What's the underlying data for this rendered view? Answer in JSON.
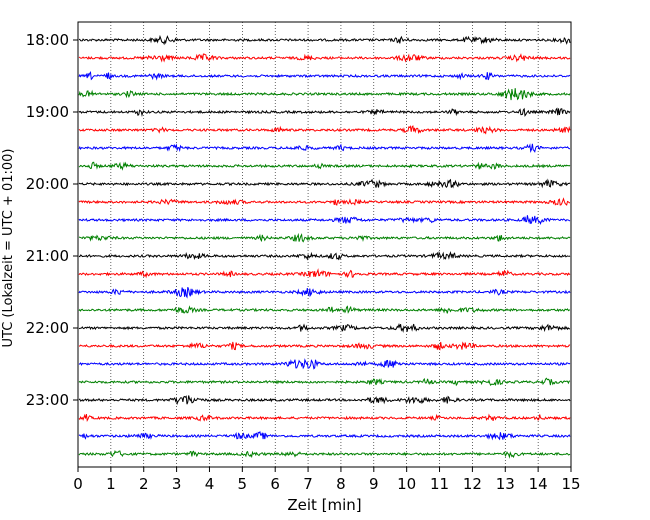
{
  "chart_data": {
    "type": "line",
    "title": "",
    "xlabel": "Zeit  [min]",
    "ylabel": "UTC (Lokalzeit = UTC + 01:00)",
    "xlim": [
      0,
      15
    ],
    "xticks": [
      0,
      1,
      2,
      3,
      4,
      5,
      6,
      7,
      8,
      9,
      10,
      11,
      12,
      13,
      14,
      15
    ],
    "xtick_labels": [
      "0",
      "1",
      "2",
      "3",
      "4",
      "5",
      "6",
      "7",
      "8",
      "9",
      "10",
      "11",
      "12",
      "13",
      "14",
      "15"
    ],
    "ylim_hours": [
      18.0,
      23.75
    ],
    "ytick_labels": [
      {
        "label": "18:00",
        "hour": 18.0
      },
      {
        "label": "19:00",
        "hour": 19.0
      },
      {
        "label": "20:00",
        "hour": 20.0
      },
      {
        "label": "21:00",
        "hour": 21.0
      },
      {
        "label": "22:00",
        "hour": 22.0
      },
      {
        "label": "23:00",
        "hour": 23.0
      }
    ],
    "vertical_grid": "dotted",
    "trace_colors": [
      "#000000",
      "#ff0000",
      "#0000ff",
      "#008000"
    ],
    "series": [
      {
        "start": "18:00",
        "color": "#000000"
      },
      {
        "start": "18:15",
        "color": "#ff0000"
      },
      {
        "start": "18:30",
        "color": "#0000ff"
      },
      {
        "start": "18:45",
        "color": "#008000"
      },
      {
        "start": "19:00",
        "color": "#000000"
      },
      {
        "start": "19:15",
        "color": "#ff0000"
      },
      {
        "start": "19:30",
        "color": "#0000ff"
      },
      {
        "start": "19:45",
        "color": "#008000"
      },
      {
        "start": "20:00",
        "color": "#000000"
      },
      {
        "start": "20:15",
        "color": "#ff0000"
      },
      {
        "start": "20:30",
        "color": "#0000ff"
      },
      {
        "start": "20:45",
        "color": "#008000"
      },
      {
        "start": "21:00",
        "color": "#000000"
      },
      {
        "start": "21:15",
        "color": "#ff0000"
      },
      {
        "start": "21:30",
        "color": "#0000ff"
      },
      {
        "start": "21:45",
        "color": "#008000"
      },
      {
        "start": "22:00",
        "color": "#000000"
      },
      {
        "start": "22:15",
        "color": "#ff0000"
      },
      {
        "start": "22:30",
        "color": "#0000ff"
      },
      {
        "start": "22:45",
        "color": "#008000"
      },
      {
        "start": "23:00",
        "color": "#000000"
      },
      {
        "start": "23:15",
        "color": "#ff0000"
      },
      {
        "start": "23:30",
        "color": "#0000ff"
      },
      {
        "start": "23:45",
        "color": "#008000"
      }
    ]
  }
}
